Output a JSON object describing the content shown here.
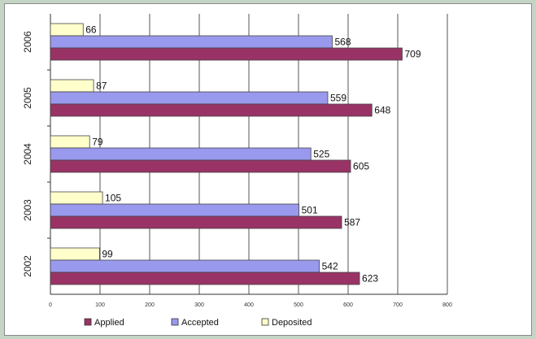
{
  "chart_data": {
    "type": "bar",
    "orientation": "horizontal",
    "categories": [
      "2006",
      "2005",
      "2004",
      "2003",
      "2002"
    ],
    "series": [
      {
        "name": "Deposited",
        "color": "#ffffcc",
        "values": [
          66,
          87,
          79,
          105,
          99
        ]
      },
      {
        "name": "Accepted",
        "color": "#9999ee",
        "values": [
          568,
          559,
          525,
          501,
          542
        ]
      },
      {
        "name": "Applied",
        "color": "#993366",
        "values": [
          709,
          648,
          605,
          587,
          623
        ]
      }
    ],
    "xlim": [
      0,
      800
    ],
    "xticks": [
      "0",
      "100",
      "200",
      "300",
      "400",
      "500",
      "600",
      "700",
      "800"
    ],
    "grid": "vertical",
    "legend": {
      "placement": "bottom",
      "order": [
        "Applied",
        "Accepted",
        "Deposited"
      ]
    },
    "title": "",
    "xlabel": "",
    "ylabel": ""
  }
}
